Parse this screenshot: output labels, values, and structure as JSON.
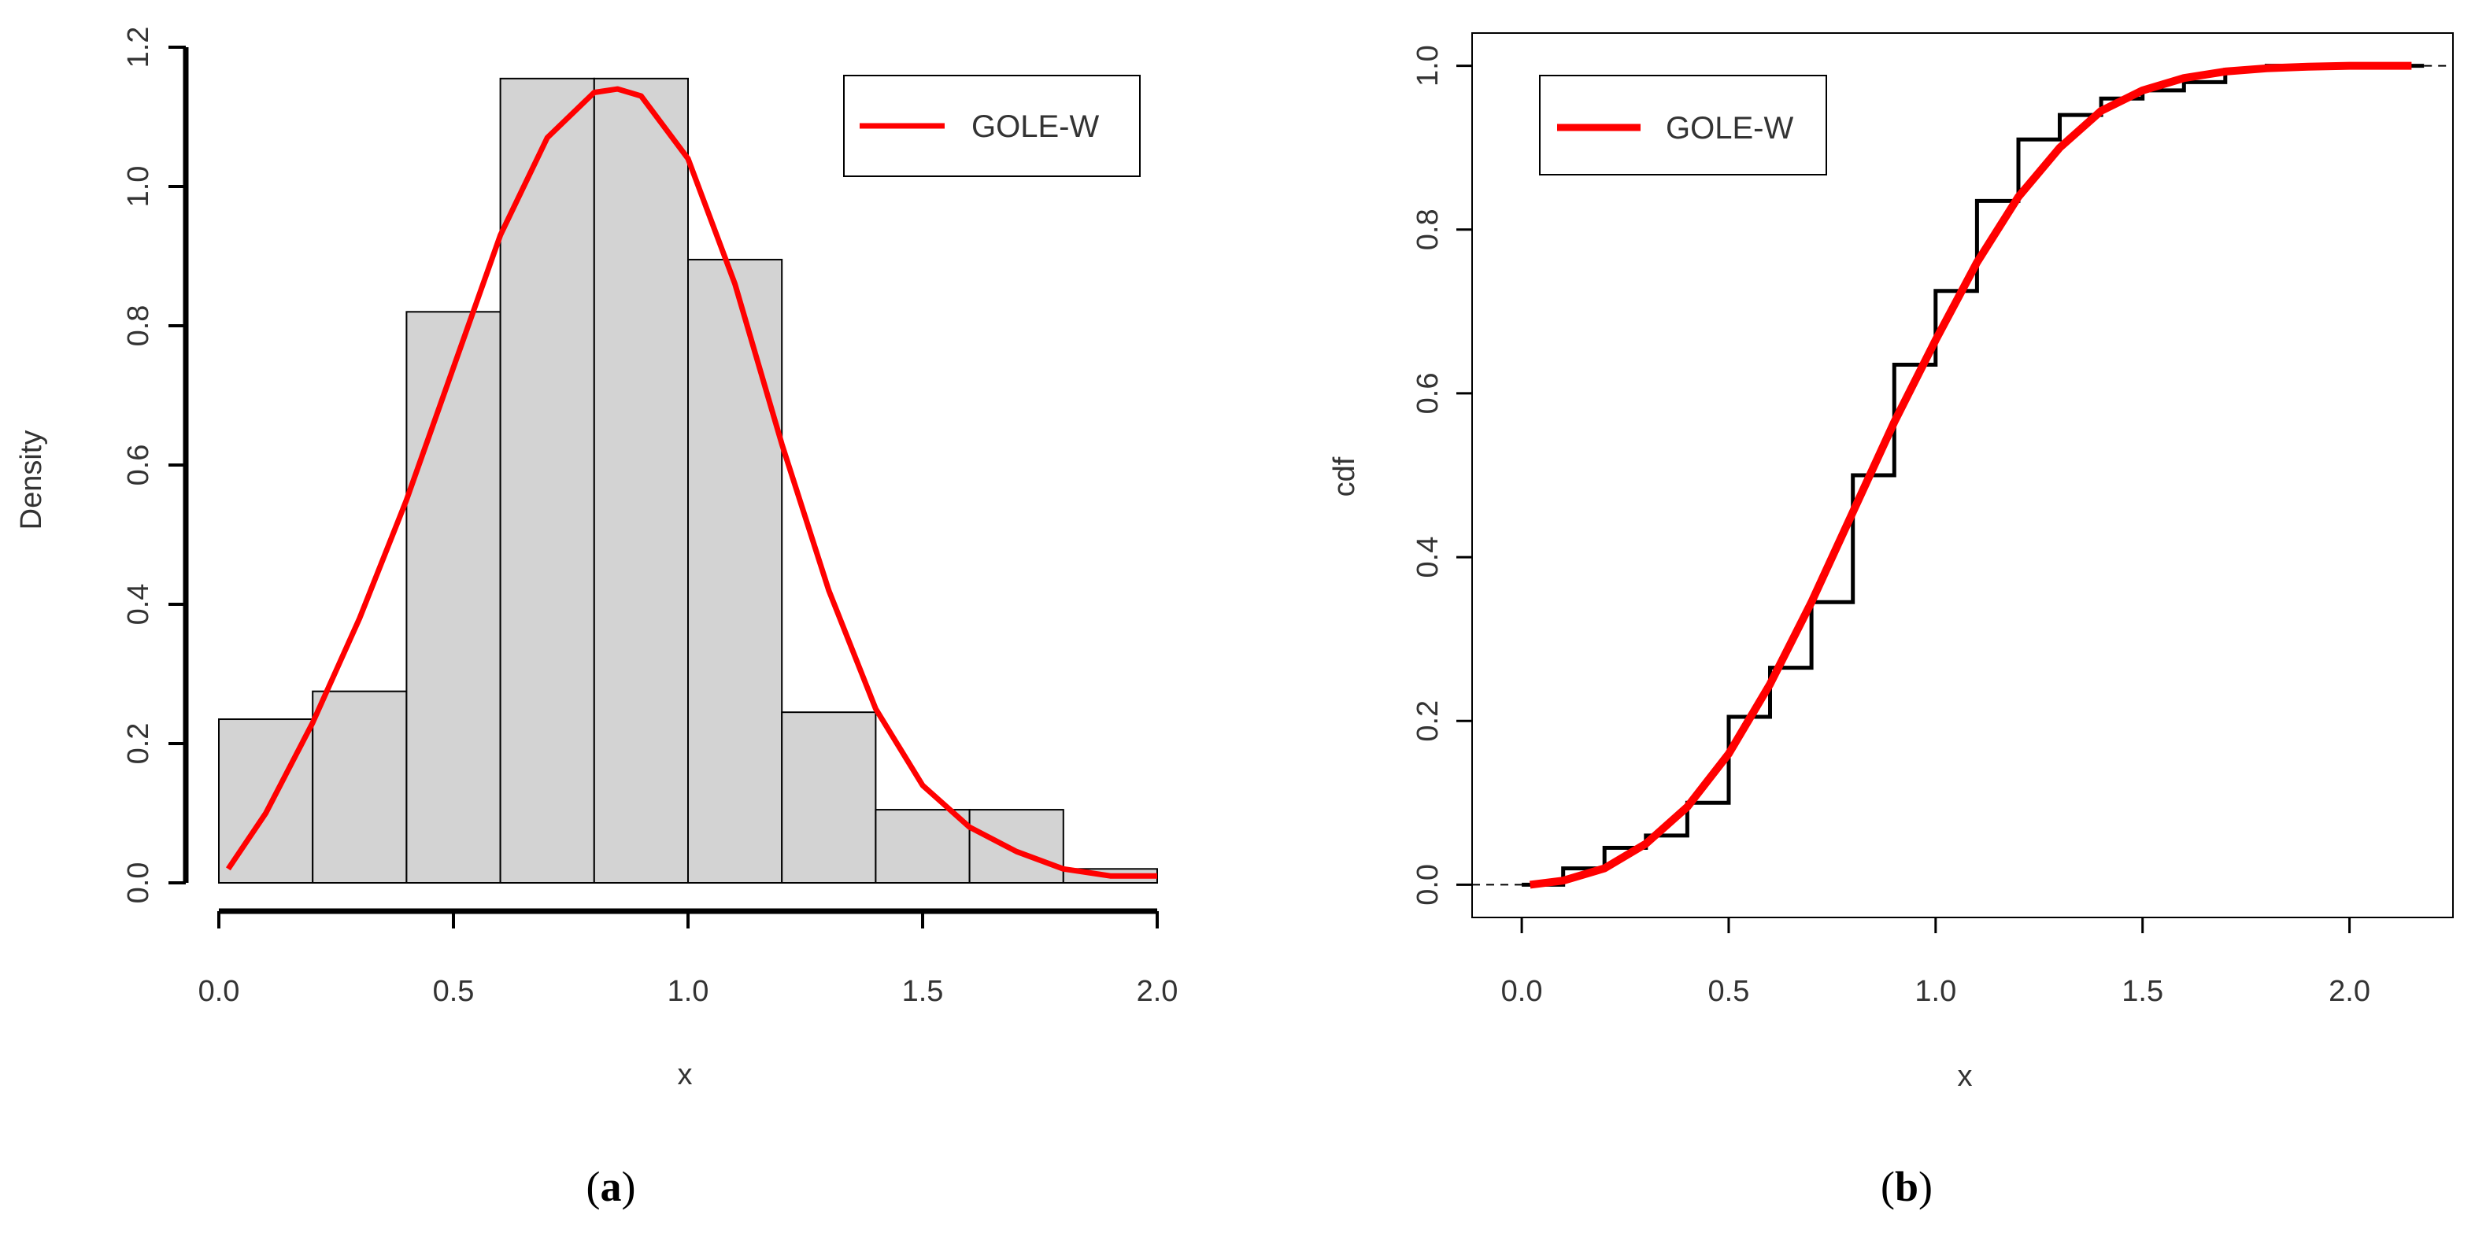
{
  "chart_data": [
    {
      "panel": "a",
      "type": "bar",
      "subtype": "histogram with fitted density",
      "xlabel": "x",
      "ylabel": "Density",
      "xlim": [
        0.0,
        2.0
      ],
      "ylim": [
        0.0,
        1.2
      ],
      "x_ticks": [
        "0.0",
        "0.5",
        "1.0",
        "1.5",
        "2.0"
      ],
      "y_ticks": [
        "0.0",
        "0.2",
        "0.4",
        "0.6",
        "0.8",
        "1.0",
        "1.2"
      ],
      "bins": [
        {
          "from": 0.0,
          "to": 0.2,
          "density": 0.235
        },
        {
          "from": 0.2,
          "to": 0.4,
          "density": 0.275
        },
        {
          "from": 0.4,
          "to": 0.6,
          "density": 0.82
        },
        {
          "from": 0.6,
          "to": 0.8,
          "density": 1.155
        },
        {
          "from": 0.8,
          "to": 1.0,
          "density": 1.155
        },
        {
          "from": 1.0,
          "to": 1.2,
          "density": 0.895
        },
        {
          "from": 1.2,
          "to": 1.4,
          "density": 0.245
        },
        {
          "from": 1.4,
          "to": 1.6,
          "density": 0.105
        },
        {
          "from": 1.6,
          "to": 1.8,
          "density": 0.105
        },
        {
          "from": 1.8,
          "to": 2.0,
          "density": 0.02
        }
      ],
      "fitted_curve": {
        "name": "GOLE-W",
        "color": "#ff0000",
        "x": [
          0.02,
          0.1,
          0.2,
          0.3,
          0.4,
          0.5,
          0.6,
          0.7,
          0.8,
          0.85,
          0.9,
          1.0,
          1.1,
          1.2,
          1.3,
          1.4,
          1.5,
          1.6,
          1.7,
          1.8,
          1.9,
          2.0
        ],
        "y": [
          0.02,
          0.1,
          0.23,
          0.38,
          0.55,
          0.74,
          0.93,
          1.07,
          1.135,
          1.14,
          1.13,
          1.04,
          0.86,
          0.63,
          0.42,
          0.25,
          0.14,
          0.08,
          0.045,
          0.02,
          0.01,
          0.01
        ]
      },
      "legend": {
        "label": "GOLE-W",
        "position": "top-right"
      },
      "bar_fill": "#d3d3d3"
    },
    {
      "panel": "b",
      "type": "line",
      "subtype": "empirical cdf vs fitted cdf",
      "xlabel": "x",
      "ylabel": "cdf",
      "xlim": [
        -0.12,
        2.25
      ],
      "ylim": [
        -0.04,
        1.04
      ],
      "x_ticks": [
        "0.0",
        "0.5",
        "1.0",
        "1.5",
        "2.0"
      ],
      "y_ticks": [
        "0.0",
        "0.2",
        "0.4",
        "0.6",
        "0.8",
        "1.0"
      ],
      "empirical_steps": {
        "x": [
          0.1,
          0.2,
          0.3,
          0.4,
          0.5,
          0.6,
          0.7,
          0.8,
          0.9,
          1.0,
          1.1,
          1.2,
          1.3,
          1.4,
          1.5,
          1.6,
          1.7,
          1.8,
          2.0
        ],
        "y": [
          0.02,
          0.045,
          0.06,
          0.1,
          0.205,
          0.265,
          0.345,
          0.5,
          0.635,
          0.725,
          0.835,
          0.91,
          0.94,
          0.96,
          0.97,
          0.98,
          0.995,
          1.0,
          1.0
        ]
      },
      "fitted_curve": {
        "name": "GOLE-W",
        "color": "#ff0000",
        "x": [
          0.02,
          0.1,
          0.2,
          0.3,
          0.4,
          0.5,
          0.6,
          0.7,
          0.8,
          0.9,
          1.0,
          1.1,
          1.2,
          1.3,
          1.4,
          1.5,
          1.6,
          1.7,
          1.8,
          1.9,
          2.0,
          2.15
        ],
        "y": [
          0.0,
          0.005,
          0.02,
          0.05,
          0.095,
          0.16,
          0.245,
          0.345,
          0.455,
          0.565,
          0.665,
          0.76,
          0.84,
          0.9,
          0.945,
          0.97,
          0.985,
          0.993,
          0.997,
          0.999,
          1.0,
          1.0
        ]
      },
      "legend": {
        "label": "GOLE-W",
        "position": "top-left"
      }
    }
  ],
  "captions": {
    "a": {
      "open": "(",
      "letter": "a",
      "close": ")"
    },
    "b": {
      "open": "(",
      "letter": "b",
      "close": ")"
    }
  },
  "colors": {
    "fit": "#ff0000",
    "bar_fill": "#d3d3d3",
    "axis": "#000000"
  }
}
